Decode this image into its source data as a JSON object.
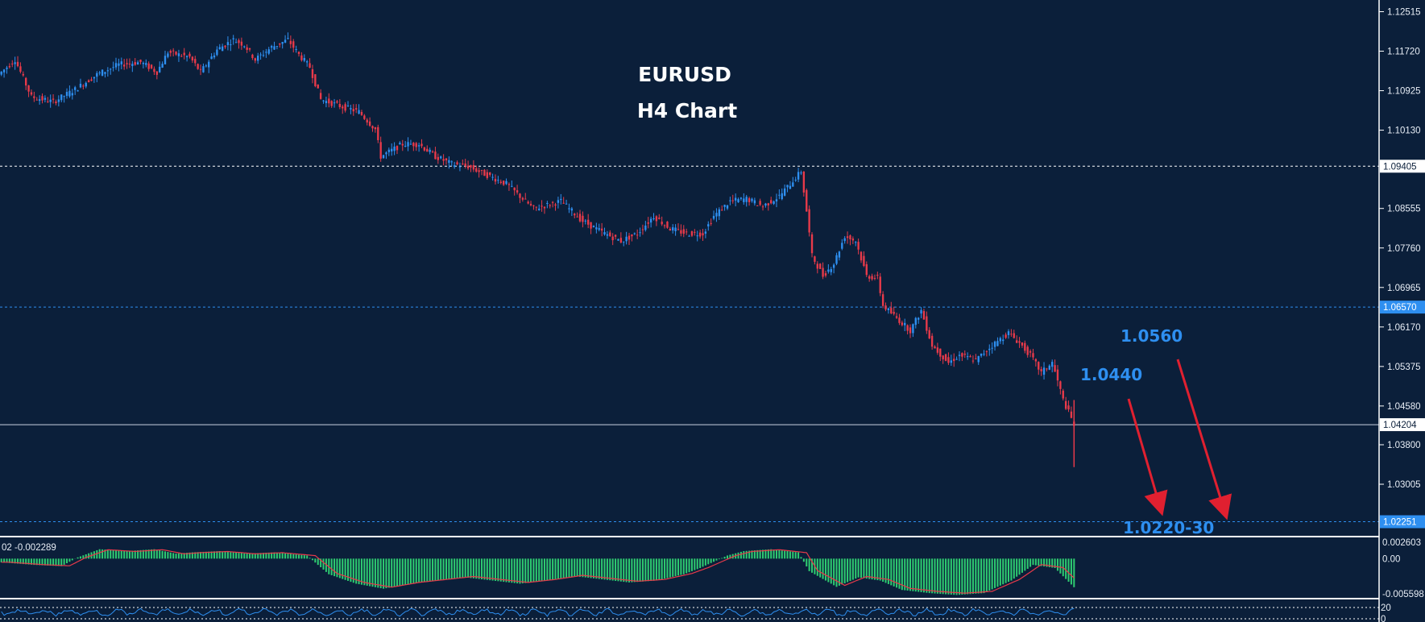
{
  "colors": {
    "background": "#0b1f3a",
    "bull": "#2e8ff0",
    "bear": "#e83a4a",
    "histogram": "#2ecc71",
    "signal": "#e83a4a",
    "level_dashed": "#ffffff",
    "level_blue": "#2e8ff0",
    "arrow": "#e02030"
  },
  "chart_data": {
    "type": "candlestick",
    "title": "EURUSD",
    "subtitle": "H4 Chart",
    "ylim": [
      1.02,
      1.1275
    ],
    "y_ticks": [
      1.12515,
      1.1172,
      1.10925,
      1.1013,
      1.08555,
      1.0776,
      1.06965,
      1.0617,
      1.05375,
      1.0458,
      1.038,
      1.03005
    ],
    "y_tick_labels": [
      "1.12515",
      "1.11720",
      "1.10925",
      "1.10130",
      "1.08555",
      "1.07760",
      "1.06965",
      "1.06170",
      "1.05375",
      "1.04580",
      "1.03800",
      "1.03005"
    ],
    "price_path": [
      [
        0,
        1.1125
      ],
      [
        6,
        1.1155
      ],
      [
        12,
        1.108
      ],
      [
        20,
        1.107
      ],
      [
        28,
        1.1095
      ],
      [
        36,
        1.1125
      ],
      [
        44,
        1.1145
      ],
      [
        52,
        1.115
      ],
      [
        58,
        1.113
      ],
      [
        62,
        1.117
      ],
      [
        70,
        1.116
      ],
      [
        74,
        1.113
      ],
      [
        80,
        1.1175
      ],
      [
        86,
        1.1195
      ],
      [
        90,
        1.1185
      ],
      [
        94,
        1.1155
      ],
      [
        100,
        1.118
      ],
      [
        106,
        1.1195
      ],
      [
        110,
        1.1165
      ],
      [
        114,
        1.114
      ],
      [
        118,
        1.1075
      ],
      [
        126,
        1.106
      ],
      [
        132,
        1.105
      ],
      [
        138,
        1.1015
      ],
      [
        140,
        1.096
      ],
      [
        148,
        1.0985
      ],
      [
        154,
        1.0985
      ],
      [
        160,
        1.096
      ],
      [
        166,
        1.0945
      ],
      [
        172,
        1.094
      ],
      [
        180,
        1.092
      ],
      [
        186,
        1.0905
      ],
      [
        190,
        1.0885
      ],
      [
        196,
        1.0855
      ],
      [
        206,
        1.087
      ],
      [
        214,
        1.083
      ],
      [
        222,
        1.0805
      ],
      [
        228,
        1.079
      ],
      [
        234,
        1.0805
      ],
      [
        240,
        1.084
      ],
      [
        246,
        1.0815
      ],
      [
        252,
        1.0805
      ],
      [
        258,
        1.0805
      ],
      [
        262,
        1.084
      ],
      [
        268,
        1.087
      ],
      [
        274,
        1.0875
      ],
      [
        280,
        1.086
      ],
      [
        286,
        1.088
      ],
      [
        290,
        1.0905
      ],
      [
        294,
        1.093
      ],
      [
        296,
        1.085
      ],
      [
        298,
        1.076
      ],
      [
        302,
        1.072
      ],
      [
        306,
        1.0745
      ],
      [
        310,
        1.08
      ],
      [
        314,
        1.079
      ],
      [
        318,
        1.072
      ],
      [
        322,
        1.0715
      ],
      [
        324,
        1.066
      ],
      [
        330,
        1.063
      ],
      [
        334,
        1.061
      ],
      [
        338,
        1.065
      ],
      [
        342,
        1.058
      ],
      [
        348,
        1.0545
      ],
      [
        352,
        1.056
      ],
      [
        358,
        1.055
      ],
      [
        364,
        1.058
      ],
      [
        370,
        1.0605
      ],
      [
        374,
        1.0585
      ],
      [
        378,
        1.056
      ],
      [
        382,
        1.0525
      ],
      [
        386,
        1.0545
      ],
      [
        390,
        1.047
      ],
      [
        394,
        1.042
      ]
    ],
    "levels": [
      {
        "value": 1.09405,
        "label": "1.09405",
        "style": "dashed-white"
      },
      {
        "value": 1.0657,
        "label": "1.06570",
        "style": "dashed-blue"
      },
      {
        "value": 1.04204,
        "label": "1.04204",
        "style": "solid-white"
      },
      {
        "value": 1.02251,
        "label": "1.02251",
        "style": "dashed-blue"
      }
    ],
    "annotations": [
      {
        "text": "1.0560",
        "kind": "target"
      },
      {
        "text": "1.0440",
        "kind": "target"
      },
      {
        "text": "1.0220-30",
        "kind": "target"
      }
    ],
    "macd": {
      "label": "02 -0.002289",
      "ticks": [
        "0.002603",
        "0.00",
        "-0.005598"
      ],
      "ylim": [
        -0.006,
        0.003
      ],
      "path": [
        [
          0,
          -0.0006
        ],
        [
          12,
          -0.001
        ],
        [
          22,
          -0.0012
        ],
        [
          28,
          0.0002
        ],
        [
          36,
          0.0015
        ],
        [
          46,
          0.0012
        ],
        [
          56,
          0.0015
        ],
        [
          64,
          0.0008
        ],
        [
          70,
          0.001
        ],
        [
          80,
          0.0012
        ],
        [
          90,
          0.0008
        ],
        [
          100,
          0.001
        ],
        [
          112,
          0.0005
        ],
        [
          120,
          -0.0025
        ],
        [
          130,
          -0.004
        ],
        [
          140,
          -0.0048
        ],
        [
          150,
          -0.004
        ],
        [
          160,
          -0.0035
        ],
        [
          170,
          -0.003
        ],
        [
          180,
          -0.0035
        ],
        [
          190,
          -0.004
        ],
        [
          200,
          -0.0035
        ],
        [
          210,
          -0.0028
        ],
        [
          220,
          -0.0033
        ],
        [
          230,
          -0.0038
        ],
        [
          240,
          -0.0035
        ],
        [
          250,
          -0.0025
        ],
        [
          256,
          -0.0015
        ],
        [
          266,
          0.0005
        ],
        [
          272,
          0.0012
        ],
        [
          282,
          0.0015
        ],
        [
          292,
          0.001
        ],
        [
          296,
          -0.002
        ],
        [
          306,
          -0.0045
        ],
        [
          314,
          -0.003
        ],
        [
          322,
          -0.0035
        ],
        [
          330,
          -0.005
        ],
        [
          340,
          -0.0055
        ],
        [
          350,
          -0.0058
        ],
        [
          360,
          -0.0055
        ],
        [
          370,
          -0.0035
        ],
        [
          378,
          -0.001
        ],
        [
          386,
          -0.0015
        ],
        [
          394,
          -0.005
        ]
      ]
    },
    "sub_ticks": [
      "20",
      "0"
    ]
  }
}
